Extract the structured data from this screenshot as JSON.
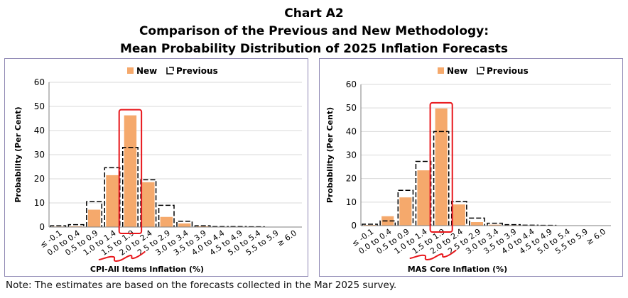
{
  "title_line1": "Chart A2",
  "title_line2": "Comparison of the Previous and New Methodology:",
  "title_line3": "Mean Probability Distribution of 2025 Inflation Forecasts",
  "note": "Note: The estimates are based on the forecasts collected in the Mar 2025 survey.",
  "colors": {
    "new": "#f5a96c",
    "previous": "#000000",
    "highlight": "#e8161b",
    "border": "#8f88b4",
    "grid": "#d9d9d9"
  },
  "chart_data": [
    {
      "type": "bar",
      "categories": [
        "≤ -0.1",
        "0.0 to 0.4",
        "0.5 to 0.9",
        "1.0 to 1.4",
        "1.5 to 1.9",
        "2.0 to 2.4",
        "2.5 to 2.9",
        "3.0 to 3.4",
        "3.5 to 3.9",
        "4.0 to 4.4",
        "4.5 to 4.9",
        "5.0 to 5.4",
        "5.5 to 5.9",
        "≥ 6.0"
      ],
      "series": [
        {
          "name": "New",
          "values": [
            0.2,
            0.3,
            7.2,
            21.5,
            46.3,
            18.6,
            4.2,
            1.5,
            0.3,
            0.1,
            0.1,
            0.0,
            0.0,
            0.0
          ]
        },
        {
          "name": "Previous",
          "values": [
            0.5,
            1.0,
            10.5,
            24.6,
            33.0,
            19.6,
            9.0,
            2.4,
            0.5,
            0.2,
            0.2,
            0.1,
            0.0,
            0.0
          ]
        }
      ],
      "xlabel": "CPI-All Items Inflation (%)",
      "ylabel": "Probability (Per Cent)",
      "ylim": [
        0,
        60
      ],
      "yticks": [
        "0",
        "10",
        "20",
        "30",
        "40",
        "50",
        "60"
      ],
      "legend_position": "top-center",
      "highlight_category": "1.5 to 1.9"
    },
    {
      "type": "bar",
      "categories": [
        "≤ -0.1",
        "0.0 to 0.4",
        "0.5 to 0.9",
        "1.0 to 1.4",
        "1.5 to 1.9",
        "2.0 to 2.4",
        "2.5 to 2.9",
        "3.0 to 3.4",
        "3.5 to 3.9",
        "4.0 to 4.4",
        "4.5 to 4.9",
        "5.0 to 5.4",
        "5.5 to 5.9",
        "≥ 6.0"
      ],
      "series": [
        {
          "name": "New",
          "values": [
            0.3,
            4.0,
            12.0,
            23.5,
            49.8,
            9.0,
            1.5,
            0.4,
            0.2,
            0.1,
            0.0,
            0.0,
            0.0,
            0.0
          ]
        },
        {
          "name": "Previous",
          "values": [
            0.6,
            2.0,
            15.0,
            27.3,
            40.0,
            10.3,
            3.2,
            1.0,
            0.4,
            0.2,
            0.1,
            0.0,
            0.0,
            0.0
          ]
        }
      ],
      "xlabel": "MAS Core Inflation (%)",
      "ylabel": "Probability (Per Cent)",
      "ylim": [
        0,
        60
      ],
      "yticks": [
        "0",
        "10",
        "20",
        "30",
        "40",
        "50",
        "60"
      ],
      "legend_position": "top-center",
      "highlight_category": "1.5 to 1.9"
    }
  ]
}
